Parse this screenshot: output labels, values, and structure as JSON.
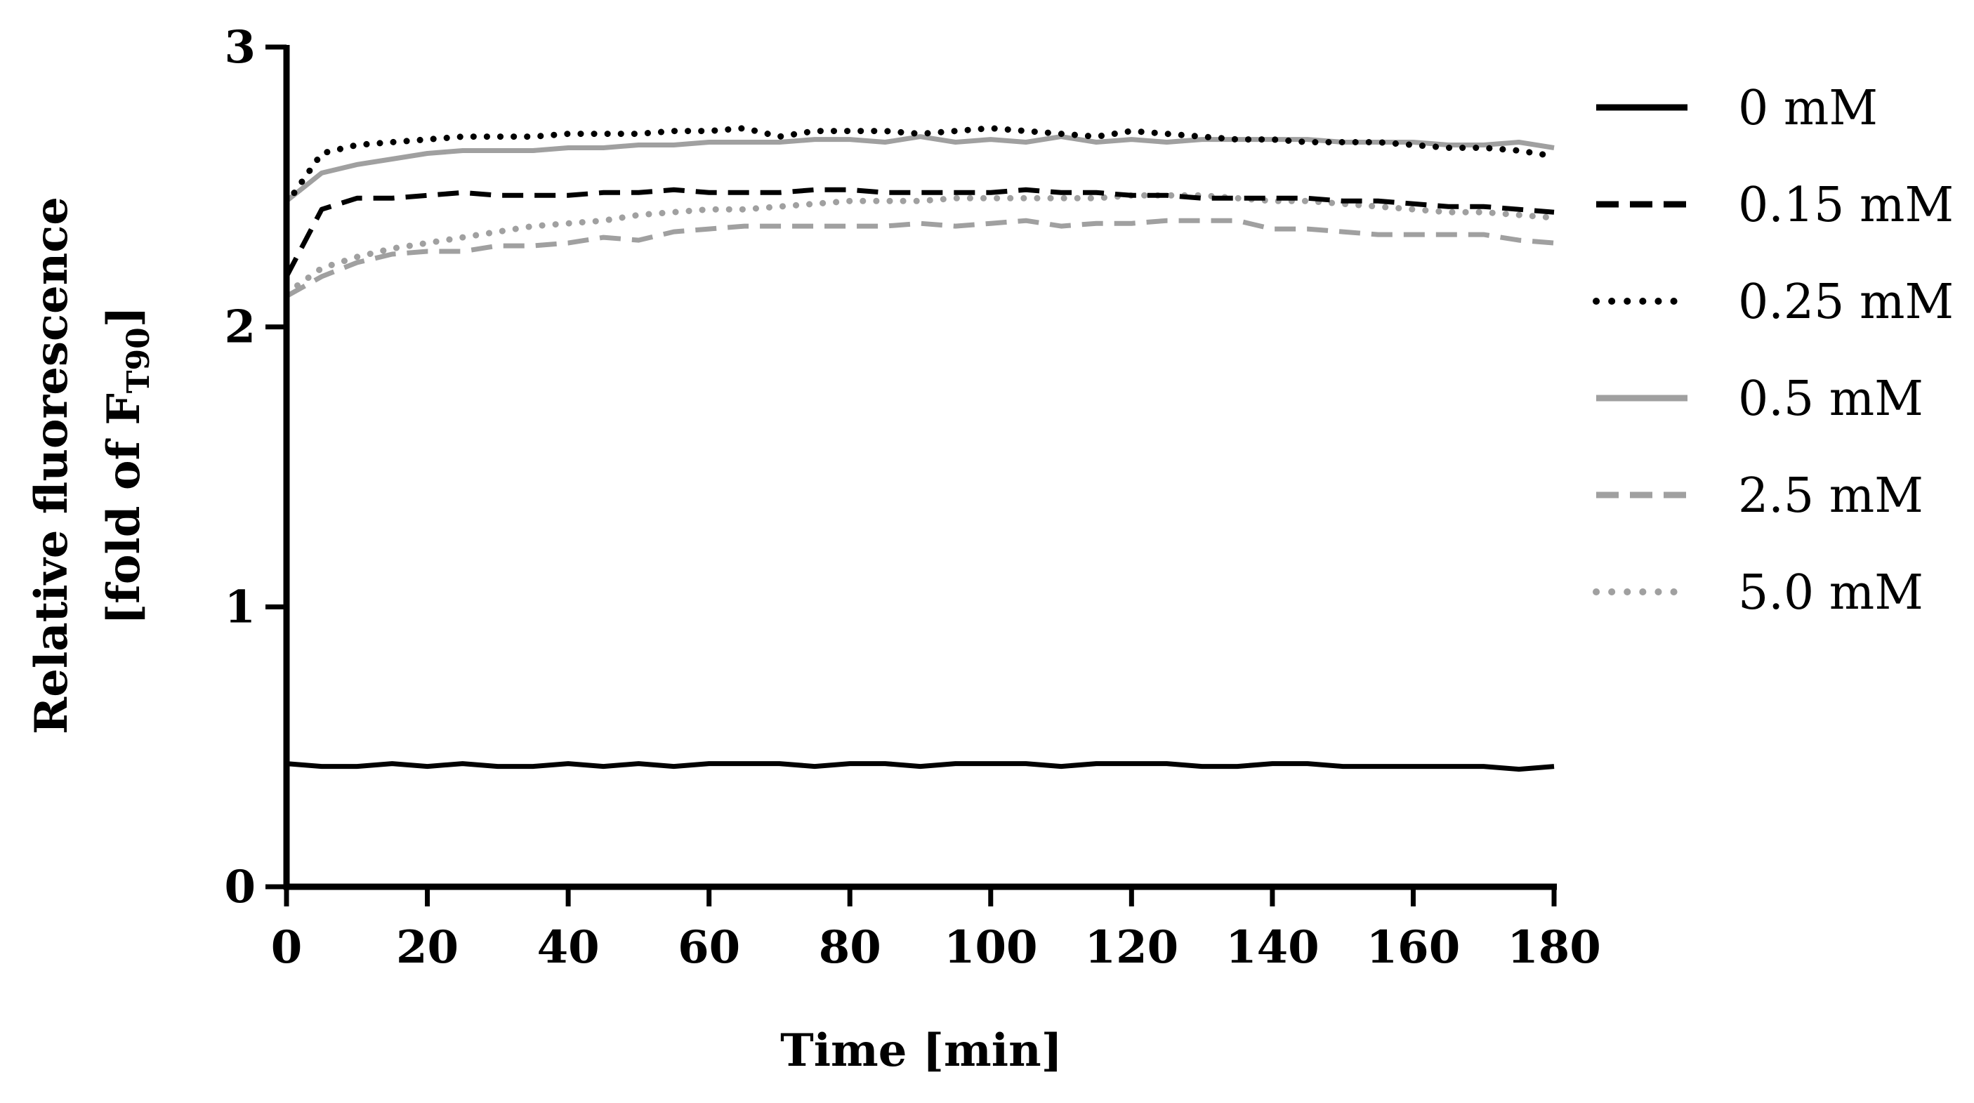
{
  "chart_data": {
    "type": "line",
    "title": "",
    "xlabel": "Time [min]",
    "ylabel_line1": "Relative fluorescence",
    "ylabel_line2_prefix": "[fold of F",
    "ylabel_line2_subscript": "T90",
    "ylabel_line2_suffix": "]",
    "xlim": [
      0,
      180
    ],
    "ylim": [
      0,
      3
    ],
    "xticks": [
      0,
      20,
      40,
      60,
      80,
      100,
      120,
      140,
      160,
      180
    ],
    "yticks": [
      0,
      1,
      2,
      3
    ],
    "grid": false,
    "legend_position": "right",
    "x": [
      0,
      5,
      10,
      15,
      20,
      25,
      30,
      35,
      40,
      45,
      50,
      55,
      60,
      65,
      70,
      75,
      80,
      85,
      90,
      95,
      100,
      105,
      110,
      115,
      120,
      125,
      130,
      135,
      140,
      145,
      150,
      155,
      160,
      165,
      170,
      175,
      180
    ],
    "series": [
      {
        "name": "0 mM",
        "color": "#000000",
        "dash": "solid",
        "values": [
          0.44,
          0.43,
          0.43,
          0.44,
          0.43,
          0.44,
          0.43,
          0.43,
          0.44,
          0.43,
          0.44,
          0.43,
          0.44,
          0.44,
          0.44,
          0.43,
          0.44,
          0.44,
          0.43,
          0.44,
          0.44,
          0.44,
          0.43,
          0.44,
          0.44,
          0.44,
          0.43,
          0.43,
          0.44,
          0.44,
          0.43,
          0.43,
          0.43,
          0.43,
          0.43,
          0.42,
          0.43
        ]
      },
      {
        "name": "0.15 mM",
        "color": "#000000",
        "dash": "dashed",
        "values": [
          2.18,
          2.42,
          2.46,
          2.46,
          2.47,
          2.48,
          2.47,
          2.47,
          2.47,
          2.48,
          2.48,
          2.49,
          2.48,
          2.48,
          2.48,
          2.49,
          2.49,
          2.48,
          2.48,
          2.48,
          2.48,
          2.49,
          2.48,
          2.48,
          2.47,
          2.47,
          2.46,
          2.46,
          2.46,
          2.46,
          2.45,
          2.45,
          2.44,
          2.43,
          2.43,
          2.42,
          2.41
        ]
      },
      {
        "name": "0.25 mM",
        "color": "#000000",
        "dash": "dotted",
        "values": [
          2.44,
          2.62,
          2.65,
          2.66,
          2.67,
          2.68,
          2.68,
          2.68,
          2.69,
          2.69,
          2.69,
          2.7,
          2.7,
          2.71,
          2.68,
          2.7,
          2.7,
          2.7,
          2.69,
          2.7,
          2.71,
          2.7,
          2.69,
          2.68,
          2.7,
          2.69,
          2.68,
          2.67,
          2.67,
          2.66,
          2.66,
          2.66,
          2.65,
          2.64,
          2.64,
          2.63,
          2.61
        ]
      },
      {
        "name": "0.5 mM",
        "color": "#a0a0a0",
        "dash": "solid",
        "values": [
          2.45,
          2.55,
          2.58,
          2.6,
          2.62,
          2.63,
          2.63,
          2.63,
          2.64,
          2.64,
          2.65,
          2.65,
          2.66,
          2.66,
          2.66,
          2.67,
          2.67,
          2.66,
          2.68,
          2.66,
          2.67,
          2.66,
          2.68,
          2.66,
          2.67,
          2.66,
          2.67,
          2.67,
          2.67,
          2.67,
          2.66,
          2.66,
          2.66,
          2.65,
          2.65,
          2.66,
          2.64
        ]
      },
      {
        "name": "2.5 mM",
        "color": "#a0a0a0",
        "dash": "dashed",
        "values": [
          2.11,
          2.18,
          2.23,
          2.26,
          2.27,
          2.27,
          2.29,
          2.29,
          2.3,
          2.32,
          2.31,
          2.34,
          2.35,
          2.36,
          2.36,
          2.36,
          2.36,
          2.36,
          2.37,
          2.36,
          2.37,
          2.38,
          2.36,
          2.37,
          2.37,
          2.38,
          2.38,
          2.38,
          2.35,
          2.35,
          2.34,
          2.33,
          2.33,
          2.33,
          2.33,
          2.31,
          2.3
        ]
      },
      {
        "name": "5.0 mM",
        "color": "#a0a0a0",
        "dash": "dotted",
        "values": [
          2.12,
          2.21,
          2.25,
          2.28,
          2.3,
          2.32,
          2.34,
          2.36,
          2.37,
          2.38,
          2.4,
          2.41,
          2.42,
          2.42,
          2.43,
          2.44,
          2.45,
          2.45,
          2.45,
          2.46,
          2.46,
          2.46,
          2.46,
          2.46,
          2.47,
          2.47,
          2.47,
          2.46,
          2.45,
          2.45,
          2.44,
          2.43,
          2.42,
          2.41,
          2.41,
          2.4,
          2.39
        ]
      }
    ]
  }
}
